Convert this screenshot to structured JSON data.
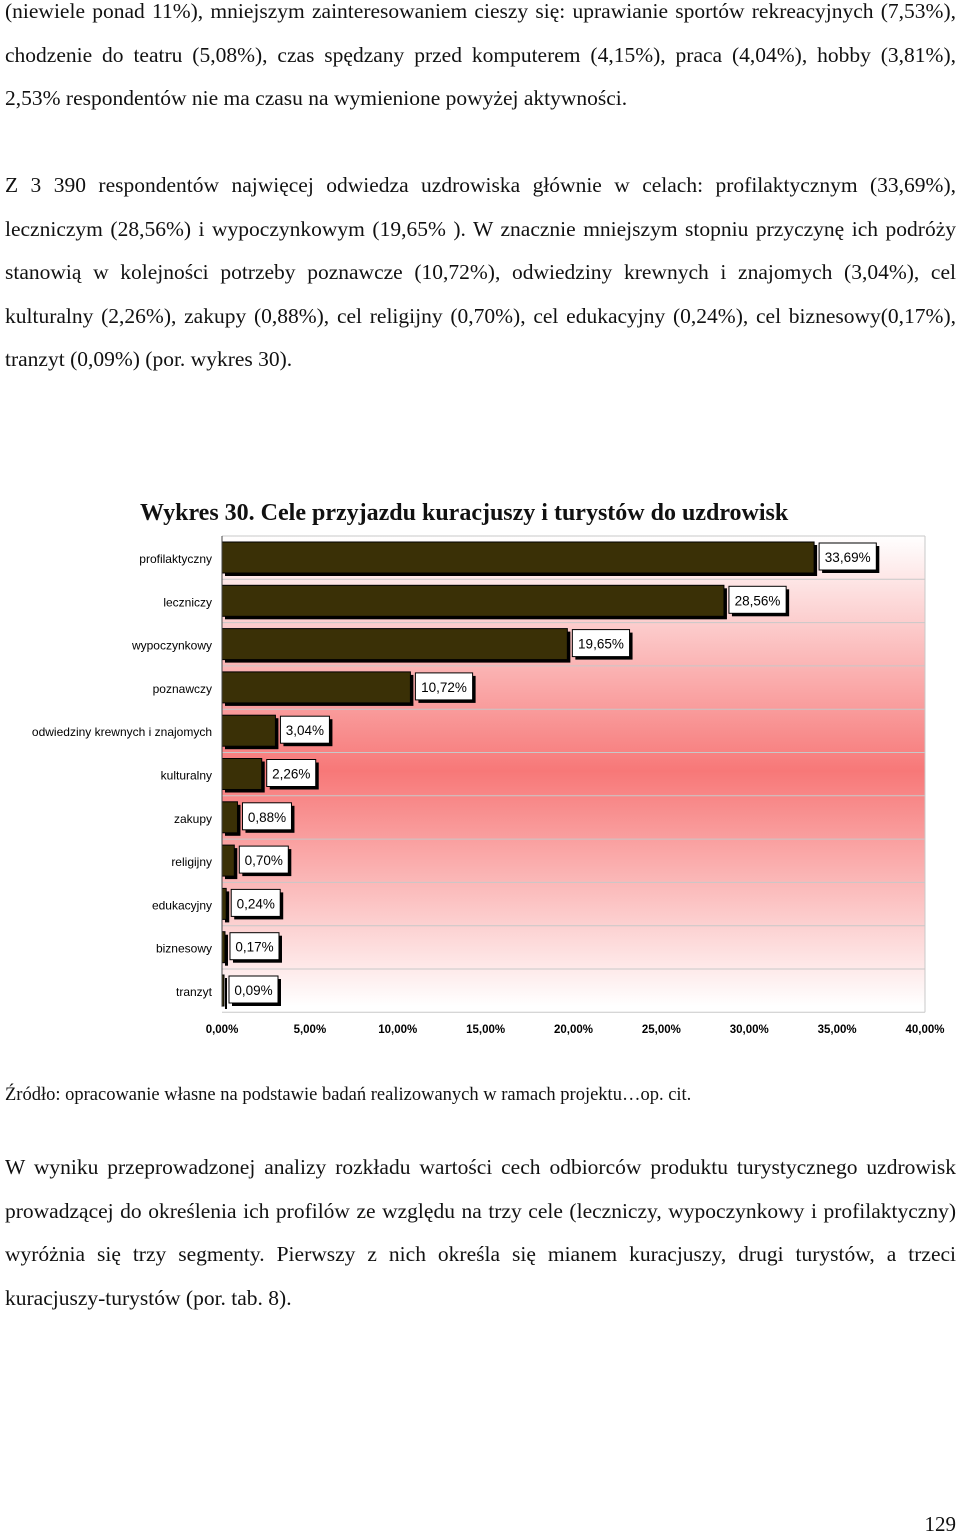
{
  "paragraph1": "(niewiele ponad 11%), mniejszym zainteresowaniem cieszy się: uprawianie sportów rekreacyjnych (7,53%), chodzenie do teatru (5,08%), czas spędzany przed komputerem (4,15%), praca (4,04%), hobby (3,81%), 2,53% respondentów nie ma czasu na wymienione powyżej aktywności.",
  "paragraph2": "Z 3 390 respondentów najwięcej odwiedza uzdrowiska głównie w celach: profilaktycznym (33,69%), leczniczym (28,56%) i wypoczynkowym (19,65% ). W znacznie mniejszym stopniu przyczynę ich podróży stanowią w kolejności potrzeby poznawcze (10,72%), odwiedziny krewnych i znajomych (3,04%), cel kulturalny (2,26%), zakupy (0,88%), cel religijny (0,70%), cel edukacyjny (0,24%), cel biznesowy(0,17%), tranzyt (0,09%) (por. wykres 30).",
  "chart_title": "Wykres 30. Cele przyjazdu kuracjuszy i turystów do uzdrowisk",
  "chart_data": {
    "type": "bar",
    "orientation": "horizontal",
    "title": "Wykres 30. Cele przyjazdu kuracjuszy i turystów do uzdrowisk",
    "categories": [
      "profilaktyczny",
      "leczniczy",
      "wypoczynkowy",
      "poznawczy",
      "odwiedziny krewnych i znajomych",
      "kulturalny",
      "zakupy",
      "religijny",
      "edukacyjny",
      "biznesowy",
      "tranzyt"
    ],
    "values": [
      33.69,
      28.56,
      19.65,
      10.72,
      3.04,
      2.26,
      0.88,
      0.7,
      0.24,
      0.17,
      0.09
    ],
    "data_labels": [
      "33,69%",
      "28,56%",
      "19,65%",
      "10,72%",
      "3,04%",
      "2,26%",
      "0,88%",
      "0,70%",
      "0,24%",
      "0,17%",
      "0,09%"
    ],
    "xlim": [
      0,
      40
    ],
    "xticks": [
      0,
      5,
      10,
      15,
      20,
      25,
      30,
      35,
      40
    ],
    "xtick_labels": [
      "0,00%",
      "5,00%",
      "10,00%",
      "15,00%",
      "20,00%",
      "25,00%",
      "30,00%",
      "35,00%",
      "40,00%"
    ],
    "xlabel": "",
    "ylabel": "",
    "grid": "horizontal",
    "legend": "none"
  },
  "colors": {
    "bar_fill": "#3a3006",
    "bar_shadow": "#000000",
    "gradient_edge": "#ffffff",
    "gradient_center": "#f77878",
    "grid": "#c8c8c8"
  },
  "source": "Źródło: opracowanie własne na podstawie badań realizowanych w ramach projektu…op. cit.",
  "paragraph3": "W wyniku przeprowadzonej analizy rozkładu wartości cech odbiorców produktu turystycznego uzdrowisk prowadzącej do określenia ich profilów ze względu na trzy cele (leczniczy, wypoczynkowy i profilaktyczny) wyróżnia się trzy segmenty. Pierwszy z nich określa się mianem kuracjuszy, drugi turystów, a trzeci kuracjuszy-turystów (por. tab. 8).",
  "page_number": "129"
}
